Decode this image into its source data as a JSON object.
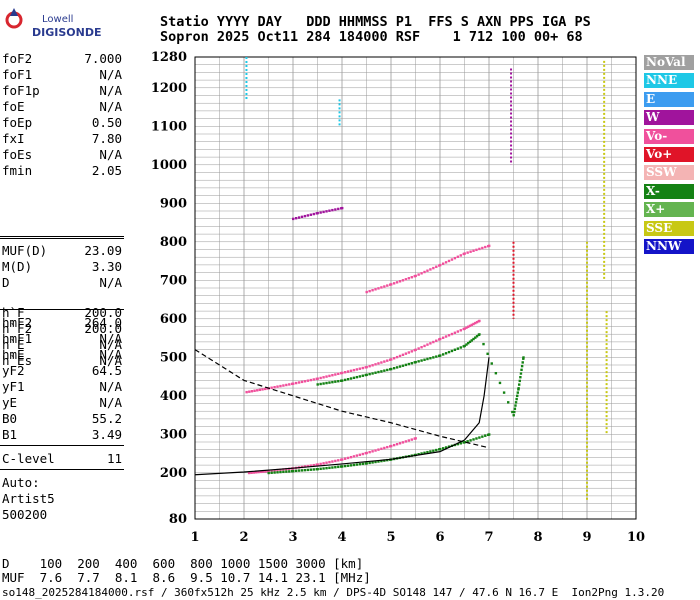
{
  "logo": {
    "top": "Lowell",
    "brand": "DIGISONDE"
  },
  "header": {
    "line1": "Statio YYYY DAY   DDD HHMMSS P1  FFS S AXN PPS IGA PS",
    "line2": "Sopron 2025 Oct11 284 184000 RSF    1 712 100 00+ 68"
  },
  "params_a": [
    {
      "k": "foF2",
      "v": "7.000"
    },
    {
      "k": "foF1",
      "v": "N/A"
    },
    {
      "k": "foF1p",
      "v": "N/A"
    },
    {
      "k": "foE",
      "v": "N/A"
    },
    {
      "k": "foEp",
      "v": "0.50"
    },
    {
      "k": "fxI",
      "v": "7.80"
    },
    {
      "k": "foEs",
      "v": "N/A"
    },
    {
      "k": "fmin",
      "v": "2.05"
    }
  ],
  "params_b": [
    {
      "k": "MUF(D)",
      "v": "23.09"
    },
    {
      "k": "M(D)",
      "v": "3.30"
    },
    {
      "k": "D",
      "v": "N/A"
    }
  ],
  "params_c": [
    {
      "k": "h`F",
      "v": "200.0"
    },
    {
      "k": "h`F2",
      "v": "200.0"
    },
    {
      "k": "h`E",
      "v": "N/A"
    },
    {
      "k": "h`Es",
      "v": "N/A"
    }
  ],
  "params_d": [
    {
      "k": "hmF2",
      "v": "264.0"
    },
    {
      "k": "hmF1",
      "v": "N/A"
    },
    {
      "k": "hmE",
      "v": "N/A"
    },
    {
      "k": "yF2",
      "v": "64.5"
    },
    {
      "k": "yF1",
      "v": "N/A"
    },
    {
      "k": "yE",
      "v": "N/A"
    },
    {
      "k": "B0",
      "v": "55.2"
    },
    {
      "k": "B1",
      "v": "3.49"
    }
  ],
  "params_e": [
    {
      "k": "C-level",
      "v": "11"
    }
  ],
  "auto": {
    "label": "Auto:",
    "artist": "Artist5",
    "version": "500200"
  },
  "legend": [
    {
      "label": "NoVal",
      "color": "#a0a0a0"
    },
    {
      "label": "NNE",
      "color": "#1ec8e6"
    },
    {
      "label": "E",
      "color": "#3c9cf0"
    },
    {
      "label": "W",
      "color": "#a0149c"
    },
    {
      "label": "Vo-",
      "color": "#f0509c"
    },
    {
      "label": "Vo+",
      "color": "#e01428"
    },
    {
      "label": "SSW",
      "color": "#f4b4b4"
    },
    {
      "label": "X-",
      "color": "#148214"
    },
    {
      "label": "X+",
      "color": "#64b450"
    },
    {
      "label": "SSE",
      "color": "#c8c814"
    },
    {
      "label": "NNW",
      "color": "#1414c8"
    }
  ],
  "footer": {
    "d_row": "D    100  200  400  600  800 1000 1500 3000 [km]",
    "muf_row": "MUF  7.6  7.7  8.1  8.6  9.5 10.7 14.1 23.1 [MHz]",
    "file_row": "so148_2025284184000.rsf / 360fx512h 25 kHz 2.5 km / DPS-4D SO148 147 / 47.6 N 16.7 E  Ion2Png 1.3.20"
  },
  "chart_data": {
    "type": "scatter",
    "xlabel": "",
    "ylabel": "",
    "xlim": [
      1,
      10
    ],
    "ylim": [
      80,
      1280
    ],
    "x_ticks": [
      1,
      2,
      3,
      4,
      5,
      6,
      7,
      8,
      9,
      10
    ],
    "y_ticks": [
      80,
      200,
      300,
      400,
      500,
      600,
      700,
      800,
      900,
      1000,
      1100,
      1200,
      1280
    ],
    "grid": true,
    "legend_position": "right",
    "series": [
      {
        "name": "Vo-",
        "color": "#f0509c",
        "x": [
          2.05,
          2.5,
          3.0,
          3.5,
          4.0,
          4.5,
          5.0,
          5.5,
          6.0,
          6.5,
          6.8
        ],
        "y": [
          410,
          420,
          432,
          445,
          460,
          475,
          495,
          520,
          548,
          575,
          595
        ]
      },
      {
        "name": "X-",
        "color": "#148214",
        "x": [
          3.5,
          4.0,
          4.5,
          5.0,
          5.5,
          6.0,
          6.5,
          6.8,
          7.5,
          7.6,
          7.7
        ],
        "y": [
          430,
          440,
          455,
          470,
          488,
          505,
          530,
          560,
          350,
          420,
          500
        ]
      },
      {
        "name": "Vo-",
        "color": "#f0509c",
        "x": [
          2.1,
          2.5,
          3.0,
          3.5,
          4.0,
          4.5,
          5.0,
          5.5
        ],
        "y": [
          200,
          205,
          212,
          222,
          235,
          252,
          270,
          290
        ]
      },
      {
        "name": "X-",
        "color": "#148214",
        "x": [
          2.5,
          3.0,
          3.5,
          4.0,
          4.5,
          5.0,
          5.5,
          6.0,
          6.5,
          7.0
        ],
        "y": [
          200,
          205,
          210,
          217,
          225,
          235,
          247,
          262,
          280,
          300
        ]
      },
      {
        "name": "Vo-",
        "color": "#f0509c",
        "x": [
          4.5,
          5.0,
          5.5,
          6.0,
          6.5,
          7.0
        ],
        "y": [
          670,
          690,
          712,
          740,
          770,
          790
        ]
      },
      {
        "name": "W",
        "color": "#a0149c",
        "x": [
          3.0,
          3.5,
          4.0
        ],
        "y": [
          860,
          875,
          888
        ]
      }
    ],
    "profile_curve": {
      "x": [
        1,
        2,
        3,
        4,
        5,
        6,
        6.5,
        6.8,
        6.9,
        7.0
      ],
      "y": [
        195,
        202,
        212,
        223,
        235,
        255,
        285,
        330,
        400,
        500
      ]
    },
    "oblique_curve": {
      "x": [
        1,
        2,
        3,
        4,
        5,
        6,
        7
      ],
      "y": [
        520,
        440,
        400,
        360,
        330,
        295,
        265
      ]
    }
  }
}
